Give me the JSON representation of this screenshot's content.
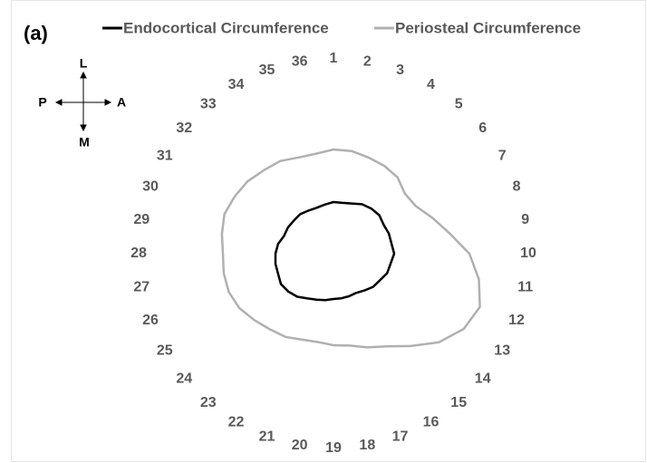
{
  "chart_data": {
    "type": "radar",
    "panel_label": "(a)",
    "compass": [
      "L",
      "P",
      "A",
      "M"
    ],
    "categories": [
      "1",
      "2",
      "3",
      "4",
      "5",
      "6",
      "7",
      "8",
      "9",
      "10",
      "11",
      "12",
      "13",
      "14",
      "15",
      "16",
      "17",
      "18",
      "19",
      "20",
      "21",
      "22",
      "23",
      "24",
      "25",
      "26",
      "27",
      "28",
      "29",
      "30",
      "31",
      "32",
      "33",
      "34",
      "35",
      "36"
    ],
    "series": [
      {
        "name": "Endocortical Circumference",
        "color": "#000000",
        "values": [
          57,
          57,
          59,
          63,
          65,
          66,
          64,
          65,
          65,
          67,
          64,
          63,
          59,
          57,
          53,
          50,
          50,
          50,
          50,
          52,
          54,
          57,
          62,
          65,
          67,
          65,
          65,
          64,
          62,
          58,
          58,
          57,
          57,
          55,
          54,
          55
        ]
      },
      {
        "name": "Periosteal Circumference",
        "color": "#b0b0b0",
        "values": [
          115,
          115,
          113,
          112,
          110,
          103,
          105,
          116,
          130,
          150,
          163,
          172,
          166,
          152,
          133,
          118,
          110,
          103,
          101,
          99,
          101,
          106,
          109,
          114,
          120,
          123,
          123,
          122,
          125,
          128,
          126,
          124,
          120,
          118,
          113,
          112
        ]
      }
    ],
    "ylim": [
      0,
      200
    ],
    "legend": "top"
  }
}
